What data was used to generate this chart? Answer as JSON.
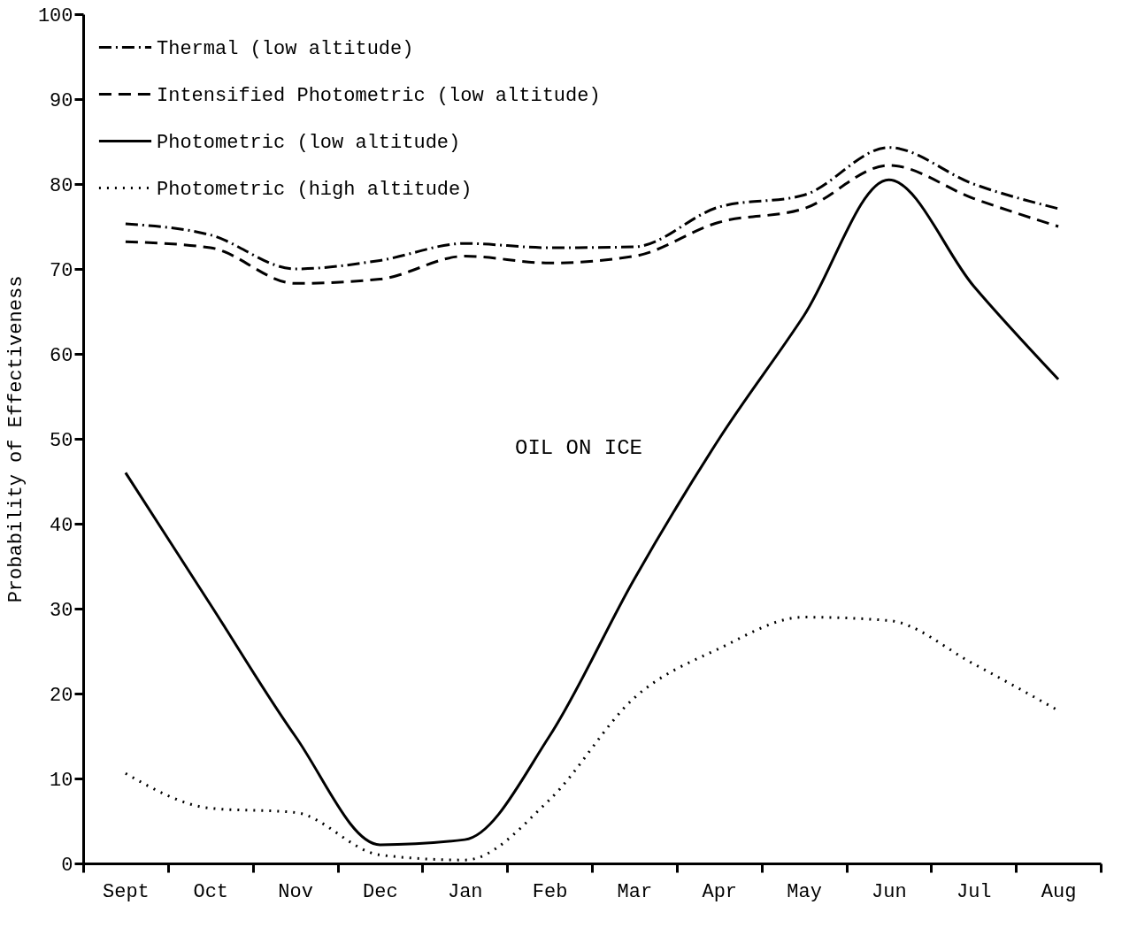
{
  "chart_data": {
    "type": "line",
    "ylabel": "Probability of Effectiveness",
    "categories": [
      "Sept",
      "Oct",
      "Nov",
      "Dec",
      "Jan",
      "Feb",
      "Mar",
      "Apr",
      "May",
      "Jun",
      "Jul",
      "Aug"
    ],
    "ylim": [
      0,
      100
    ],
    "yticks": [
      0,
      10,
      20,
      30,
      40,
      50,
      60,
      70,
      80,
      90,
      100
    ],
    "grid": false,
    "legend": "top left",
    "marker": "none",
    "annotations": [
      "OIL ON ICE"
    ],
    "series": [
      {
        "name": "Thermal (low altitude)",
        "color": "#000000",
        "line_style": "dashdot",
        "values": [
          75.3,
          74,
          70,
          71,
          73,
          72.5,
          72.6,
          77.3,
          78.7,
          84.3,
          80,
          77.1
        ]
      },
      {
        "name": "Intensified Photometric (low altitude)",
        "color": "#000000",
        "line_style": "dashed",
        "values": [
          73.2,
          72.5,
          68.3,
          68.8,
          71.5,
          70.7,
          71.5,
          75.5,
          77.1,
          82.2,
          78.3,
          75
        ]
      },
      {
        "name": "Photometric (low altitude)",
        "color": "#000000",
        "line_style": "solid",
        "values": [
          46,
          30.5,
          15,
          2.2,
          2.8,
          15,
          33.5,
          50,
          64.5,
          80.5,
          68,
          57
        ]
      },
      {
        "name": "Photometric (high altitude)",
        "color": "#000000",
        "line_style": "dotted",
        "values": [
          10.6,
          6.5,
          6,
          1,
          0.4,
          7.5,
          19.5,
          25.3,
          29,
          28.6,
          23.5,
          18
        ]
      }
    ]
  }
}
